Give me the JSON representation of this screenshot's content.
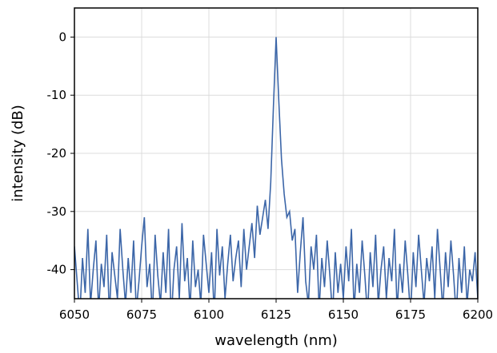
{
  "chart_data": {
    "type": "line",
    "x_label": "wavelength (nm)",
    "y_label": "intensity (dB)",
    "xlim": [
      6050,
      6200
    ],
    "xticks": [
      6050,
      6075,
      6100,
      6125,
      6150,
      6175,
      6200
    ],
    "ylim": [
      -45,
      5
    ],
    "yticks": [
      0,
      -10,
      -20,
      -30,
      -40
    ],
    "grid": true,
    "x": [
      6050,
      6051,
      6052,
      6053,
      6054,
      6055,
      6056,
      6057,
      6058,
      6059,
      6060,
      6061,
      6062,
      6063,
      6064,
      6065,
      6066,
      6067,
      6068,
      6069,
      6070,
      6071,
      6072,
      6073,
      6074,
      6075,
      6076,
      6077,
      6078,
      6079,
      6080,
      6081,
      6082,
      6083,
      6084,
      6085,
      6086,
      6087,
      6088,
      6089,
      6090,
      6091,
      6092,
      6093,
      6094,
      6095,
      6096,
      6097,
      6098,
      6099,
      6100,
      6101,
      6102,
      6103,
      6104,
      6105,
      6106,
      6107,
      6108,
      6109,
      6110,
      6111,
      6112,
      6113,
      6114,
      6115,
      6116,
      6117,
      6118,
      6119,
      6120,
      6121,
      6122,
      6123,
      6124,
      6125,
      6126,
      6127,
      6128,
      6129,
      6130,
      6131,
      6132,
      6133,
      6134,
      6135,
      6136,
      6137,
      6138,
      6139,
      6140,
      6141,
      6142,
      6143,
      6144,
      6145,
      6146,
      6147,
      6148,
      6149,
      6150,
      6151,
      6152,
      6153,
      6154,
      6155,
      6156,
      6157,
      6158,
      6159,
      6160,
      6161,
      6162,
      6163,
      6164,
      6165,
      6166,
      6167,
      6168,
      6169,
      6170,
      6171,
      6172,
      6173,
      6174,
      6175,
      6176,
      6177,
      6178,
      6179,
      6180,
      6181,
      6182,
      6183,
      6184,
      6185,
      6186,
      6187,
      6188,
      6189,
      6190,
      6191,
      6192,
      6193,
      6194,
      6195,
      6196,
      6197,
      6198,
      6199,
      6200
    ],
    "series": [
      {
        "color": "#3c66a8",
        "values": [
          -36,
          -42,
          -48,
          -38,
          -44,
          -33,
          -46,
          -40,
          -35,
          -47,
          -39,
          -43,
          -34,
          -48,
          -37,
          -41,
          -45,
          -33,
          -40,
          -46,
          -38,
          -44,
          -35,
          -47,
          -42,
          -36,
          -31,
          -43,
          -39,
          -48,
          -34,
          -41,
          -46,
          -37,
          -44,
          -33,
          -49,
          -40,
          -36,
          -45,
          -32,
          -42,
          -38,
          -47,
          -35,
          -43,
          -40,
          -46,
          -34,
          -39,
          -44,
          -37,
          -48,
          -33,
          -41,
          -36,
          -45,
          -39,
          -34,
          -42,
          -38,
          -35,
          -43,
          -33,
          -40,
          -36,
          -32,
          -38,
          -29,
          -34,
          -31,
          -28,
          -33,
          -25,
          -12,
          0,
          -11,
          -21,
          -27,
          -31,
          -30,
          -35,
          -33,
          -44,
          -37,
          -31,
          -42,
          -46,
          -36,
          -40,
          -34,
          -47,
          -38,
          -43,
          -35,
          -41,
          -48,
          -37,
          -44,
          -39,
          -45,
          -36,
          -42,
          -33,
          -47,
          -39,
          -44,
          -35,
          -41,
          -48,
          -37,
          -43,
          -34,
          -46,
          -40,
          -36,
          -45,
          -38,
          -42,
          -33,
          -47,
          -39,
          -44,
          -35,
          -41,
          -48,
          -37,
          -43,
          -34,
          -40,
          -46,
          -38,
          -42,
          -36,
          -45,
          -33,
          -40,
          -47,
          -37,
          -43,
          -35,
          -41,
          -48,
          -38,
          -44,
          -36,
          -46,
          -40,
          -42,
          -37,
          -45
        ]
      }
    ]
  }
}
